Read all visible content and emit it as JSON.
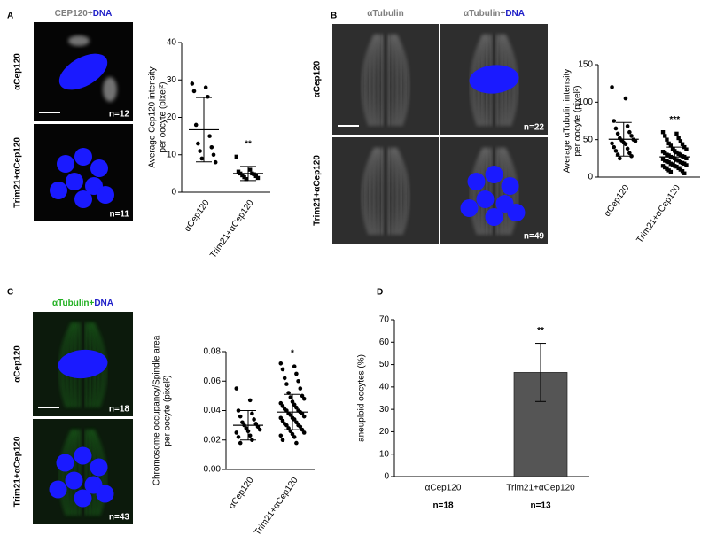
{
  "figure": {
    "panels": [
      {
        "letter": "A",
        "headers": [
          [
            {
              "text": "CEP120+",
              "color": "#7f7f7f"
            },
            {
              "text": "DNA",
              "color": "#2020c8"
            }
          ]
        ],
        "row_labels": [
          "αCep120",
          "Trim21+αCep120"
        ],
        "n_labels": [
          "n=12",
          "n=11"
        ]
      },
      {
        "letter": "B",
        "headers": [
          [
            {
              "text": "αTubulin",
              "color": "#7f7f7f"
            }
          ],
          [
            {
              "text": "αTubulin+",
              "color": "#7f7f7f"
            },
            {
              "text": "DNA",
              "color": "#2020c8"
            }
          ]
        ],
        "row_labels": [
          "αCep120",
          "Trim21+αCep120"
        ],
        "n_labels": [
          "n=22",
          "n=49"
        ]
      },
      {
        "letter": "C",
        "headers": [
          [
            {
              "text": "αTubulin+",
              "color": "#22b022"
            },
            {
              "text": "DNA",
              "color": "#2020c8"
            }
          ]
        ],
        "row_labels": [
          "αCep120",
          "Trim21+αCep120"
        ],
        "n_labels": [
          "n=18",
          "n=43"
        ]
      },
      {
        "letter": "D"
      }
    ]
  },
  "chart_data": [
    {
      "type": "dot-plot",
      "ylabel": [
        "Average  Cep120 intensity",
        "per oocyte (pixel²)"
      ],
      "categories": [
        "αCep120",
        "Trim21+αCep120"
      ],
      "markers": [
        "circle",
        "square"
      ],
      "points": [
        [
          29,
          28,
          27,
          25.5,
          18,
          15,
          13,
          12,
          11,
          10,
          9,
          8
        ],
        [
          9.5,
          6,
          5.5,
          5,
          5,
          4.8,
          4.5,
          4.3,
          4,
          3.8,
          3.5
        ]
      ],
      "mean": [
        16.7,
        5.0
      ],
      "sd": [
        8.6,
        1.9
      ],
      "ylim": [
        0,
        40
      ],
      "yticks": [
        0,
        10,
        20,
        30,
        40
      ],
      "annotation": "**"
    },
    {
      "type": "dot-plot",
      "ylabel": [
        "Average αTubulin intensity",
        "per oocyte (pixel²)"
      ],
      "categories": [
        "αCep120",
        "Trim21+αCep120"
      ],
      "markers": [
        "circle",
        "square"
      ],
      "points": [
        [
          120,
          105,
          75,
          68,
          65,
          60,
          58,
          55,
          52,
          50,
          49,
          48,
          46,
          45,
          44,
          40,
          38,
          35,
          32,
          30,
          28,
          25
        ],
        [
          60,
          58,
          55,
          52,
          50,
          48,
          45,
          44,
          42,
          40,
          38,
          37,
          35,
          34,
          33,
          32,
          31,
          30,
          30,
          29,
          28,
          27,
          27,
          26,
          25,
          25,
          24,
          23,
          22,
          22,
          21,
          20,
          20,
          19,
          18,
          18,
          17,
          16,
          15,
          15,
          14,
          13,
          12,
          11,
          10,
          9,
          8,
          7,
          5
        ]
      ],
      "mean": [
        50.5,
        27
      ],
      "sd": [
        22.5,
        13
      ],
      "ylim": [
        0,
        150
      ],
      "yticks": [
        0,
        50,
        100,
        150
      ],
      "annotation": "***"
    },
    {
      "type": "dot-plot",
      "ylabel": [
        "Chromosome occupancy/Spindle area",
        "per oocyte (pixel²)"
      ],
      "categories": [
        "αCep120",
        "Trim21+αCep120"
      ],
      "markers": [
        "circle",
        "circle"
      ],
      "points": [
        [
          0.055,
          0.047,
          0.04,
          0.038,
          0.036,
          0.034,
          0.032,
          0.031,
          0.03,
          0.029,
          0.028,
          0.027,
          0.026,
          0.025,
          0.023,
          0.022,
          0.02,
          0.018
        ],
        [
          0.072,
          0.07,
          0.068,
          0.065,
          0.062,
          0.06,
          0.058,
          0.055,
          0.052,
          0.05,
          0.049,
          0.048,
          0.046,
          0.045,
          0.044,
          0.043,
          0.042,
          0.041,
          0.04,
          0.04,
          0.039,
          0.038,
          0.038,
          0.037,
          0.036,
          0.035,
          0.035,
          0.034,
          0.033,
          0.032,
          0.031,
          0.03,
          0.03,
          0.029,
          0.028,
          0.027,
          0.026,
          0.025,
          0.024,
          0.023,
          0.022,
          0.02,
          0.018
        ]
      ],
      "mean": [
        0.03,
        0.039
      ],
      "sd": [
        0.01,
        0.012
      ],
      "ylim": [
        0,
        0.08
      ],
      "yticks": [
        {
          "value": 0,
          "label": "0.00"
        },
        {
          "value": 0.02,
          "label": "0.02"
        },
        {
          "value": 0.04,
          "label": "0.04"
        },
        {
          "value": 0.06,
          "label": "0.06"
        },
        {
          "value": 0.08,
          "label": "0.08"
        }
      ],
      "annotation": "*"
    },
    {
      "type": "bar",
      "ylabel": [
        "aneuploid oocytes (%)"
      ],
      "categories": [
        "αCep120",
        "Trim21+αCep120"
      ],
      "sublabels": [
        "n=18",
        "n=13"
      ],
      "values": [
        0,
        46.5
      ],
      "error": [
        0,
        13
      ],
      "color": "#555555",
      "ylim": [
        0,
        70
      ],
      "yticks": [
        0,
        10,
        20,
        30,
        40,
        50,
        60,
        70
      ],
      "annotation": "**"
    }
  ]
}
